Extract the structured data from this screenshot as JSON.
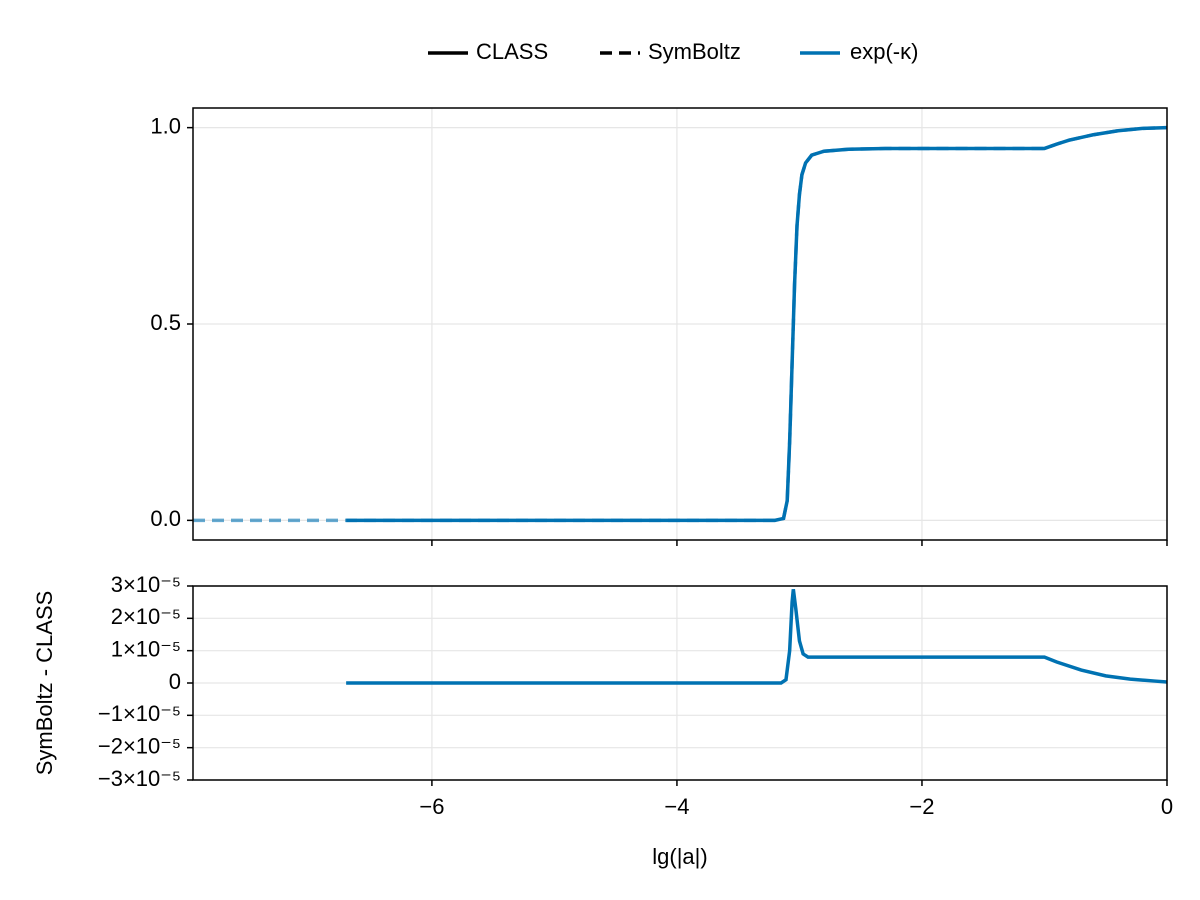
{
  "chart_data": [
    {
      "type": "line",
      "xlim": [
        -7.95,
        0
      ],
      "xticks": [
        -6,
        -4,
        -2,
        0
      ],
      "ylim": [
        -0.05,
        1.05
      ],
      "yticks": [
        {
          "value": 0,
          "label": "0.0"
        },
        0.5,
        {
          "value": 1,
          "label": "1.0"
        }
      ],
      "grid": true,
      "series": [
        {
          "name": "CLASS",
          "linestyle": "solid",
          "color": "#0072b2",
          "x": [
            -6.7,
            -5,
            -4,
            -3.2,
            -3.13,
            -3.1,
            -3.08,
            -3.06,
            -3.04,
            -3.02,
            -3.0,
            -2.98,
            -2.95,
            -2.9,
            -2.8,
            -2.6,
            -2.3,
            -2,
            -1.5,
            -1.0,
            -0.9,
            -0.8,
            -0.6,
            -0.4,
            -0.2,
            0
          ],
          "values": [
            0,
            0,
            0,
            0,
            0.005,
            0.05,
            0.2,
            0.4,
            0.6,
            0.75,
            0.83,
            0.88,
            0.91,
            0.93,
            0.94,
            0.945,
            0.947,
            0.947,
            0.947,
            0.947,
            0.958,
            0.968,
            0.982,
            0.992,
            0.998,
            1.0
          ]
        },
        {
          "name": "SymBoltz",
          "linestyle": "dashed",
          "color": "#0072b2",
          "x": [
            -7.95,
            -6.7,
            -5,
            -4,
            -3.2,
            -3.13,
            -3.1,
            -3.08,
            -3.06,
            -3.04,
            -3.02,
            -3.0,
            -2.98,
            -2.95,
            -2.9,
            -2.8,
            -2.6,
            -2.3,
            -2,
            -1.5,
            -1.0,
            -0.9,
            -0.8,
            -0.6,
            -0.4,
            -0.2,
            0
          ],
          "values": [
            0,
            0,
            0,
            0,
            0,
            0.005,
            0.05,
            0.2,
            0.4,
            0.6,
            0.75,
            0.83,
            0.88,
            0.91,
            0.93,
            0.94,
            0.945,
            0.947,
            0.947,
            0.947,
            0.947,
            0.958,
            0.968,
            0.982,
            0.992,
            0.998,
            1.0
          ]
        }
      ],
      "color_legend": {
        "name": "exp(-κ)",
        "color": "#0072b2"
      }
    },
    {
      "type": "line",
      "xlabel": "lg(|a|)",
      "ylabel": "SymBoltz - CLASS",
      "xlim": [
        -7.95,
        0
      ],
      "xticks": [
        {
          "value": -6,
          "label": "−6"
        },
        {
          "value": -4,
          "label": "−4"
        },
        {
          "value": -2,
          "label": "−2"
        },
        0
      ],
      "ylim": [
        -3e-05,
        3e-05
      ],
      "yticks": [
        {
          "value": -3e-05,
          "label": "−3×10⁻⁵"
        },
        {
          "value": -2e-05,
          "label": "−2×10⁻⁵"
        },
        {
          "value": -1e-05,
          "label": "−1×10⁻⁵"
        },
        0,
        {
          "value": 1e-05,
          "label": "1×10⁻⁵"
        },
        {
          "value": 2e-05,
          "label": "2×10⁻⁵"
        },
        {
          "value": 3e-05,
          "label": "3×10⁻⁵"
        }
      ],
      "grid": true,
      "series": [
        {
          "name": "exp(-κ)",
          "linestyle": "solid",
          "color": "#0072b2",
          "x": [
            -6.7,
            -5,
            -4,
            -3.15,
            -3.11,
            -3.08,
            -3.06,
            -3.05,
            -3.03,
            -3.0,
            -2.97,
            -2.93,
            -2.9,
            -2.5,
            -2,
            -1.5,
            -1.0,
            -0.9,
            -0.7,
            -0.5,
            -0.3,
            -0.1,
            0
          ],
          "values": [
            0,
            0,
            0,
            0,
            1e-06,
            1e-05,
            2.5e-05,
            2.9e-05,
            2.3e-05,
            1.3e-05,
            9e-06,
            8e-06,
            8e-06,
            8e-06,
            8e-06,
            8e-06,
            8e-06,
            6.5e-06,
            4e-06,
            2.2e-06,
            1.2e-06,
            6e-07,
            3e-07
          ]
        }
      ]
    }
  ]
}
